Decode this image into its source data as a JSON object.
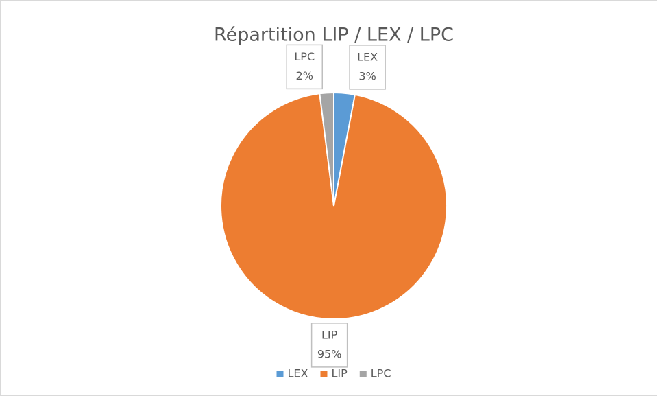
{
  "chart_data": {
    "type": "pie",
    "title": "Répartition LIP / LEX / LPC",
    "categories": [
      "LEX",
      "LIP",
      "LPC"
    ],
    "values": [
      3,
      95,
      2
    ],
    "value_labels": [
      "3%",
      "95%",
      "2%"
    ],
    "colors": [
      "#5b9bd5",
      "#ed7d31",
      "#a5a5a5"
    ],
    "legend": "bottom"
  }
}
